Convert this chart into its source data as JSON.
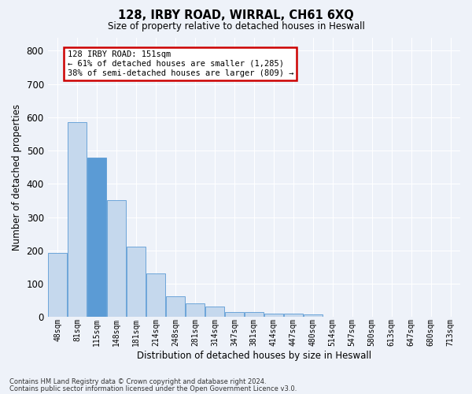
{
  "title": "128, IRBY ROAD, WIRRAL, CH61 6XQ",
  "subtitle": "Size of property relative to detached houses in Heswall",
  "xlabel": "Distribution of detached houses by size in Heswall",
  "ylabel": "Number of detached properties",
  "bar_color": "#c5d8ed",
  "bar_edge_color": "#5b9bd5",
  "background_color": "#eef2f9",
  "grid_color": "#ffffff",
  "categories": [
    "48sqm",
    "81sqm",
    "115sqm",
    "148sqm",
    "181sqm",
    "214sqm",
    "248sqm",
    "281sqm",
    "314sqm",
    "347sqm",
    "381sqm",
    "414sqm",
    "447sqm",
    "480sqm",
    "514sqm",
    "547sqm",
    "580sqm",
    "613sqm",
    "647sqm",
    "680sqm",
    "713sqm"
  ],
  "values": [
    192,
    585,
    480,
    352,
    212,
    130,
    62,
    40,
    32,
    15,
    15,
    10,
    10,
    8,
    0,
    0,
    0,
    0,
    0,
    0,
    0
  ],
  "ylim": [
    0,
    840
  ],
  "yticks": [
    0,
    100,
    200,
    300,
    400,
    500,
    600,
    700,
    800
  ],
  "property_bar_index": 2,
  "property_bar_color": "#5b9bd5",
  "annotation_text": "128 IRBY ROAD: 151sqm\n← 61% of detached houses are smaller (1,285)\n38% of semi-detached houses are larger (809) →",
  "annotation_box_color": "#ffffff",
  "annotation_box_edge_color": "#cc0000",
  "footnote1": "Contains HM Land Registry data © Crown copyright and database right 2024.",
  "footnote2": "Contains public sector information licensed under the Open Government Licence v3.0."
}
